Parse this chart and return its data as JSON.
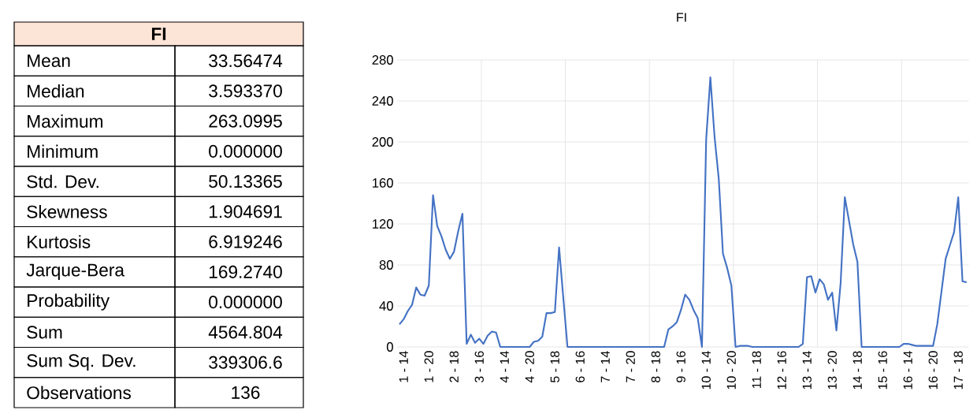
{
  "chart_data": [
    {
      "type": "other",
      "title": "FI",
      "categories": [
        "Mean",
        "Median",
        "Maximum",
        "Minimum",
        "Std. Dev.",
        "Skewness",
        "Kurtosis",
        "Jarque-Bera",
        "Probability",
        "Sum",
        "Sum Sq. Dev.",
        "Observations"
      ],
      "values": [
        33.56474,
        3.59337,
        263.0995,
        0,
        50.13365,
        1.904691,
        6.919246,
        169.274,
        0,
        4564.804,
        339306.6,
        136
      ],
      "value_labels": [
        "33.56474",
        "3.593370",
        "263.0995",
        "0.000000",
        "50.13365",
        "1.904691",
        "6.919246",
        "169.2740",
        "0.000000",
        "4564.804",
        "339306.6",
        "136"
      ]
    },
    {
      "type": "line",
      "title": "FI",
      "color": "#4472c4",
      "grid": true,
      "ylim": [
        0,
        280
      ],
      "yticks": [
        0,
        40,
        80,
        120,
        160,
        200,
        240,
        280
      ],
      "categories": [
        null,
        "1 - 14",
        null,
        null,
        null,
        null,
        null,
        "1 - 20",
        null,
        null,
        null,
        null,
        null,
        "2 - 18",
        null,
        null,
        null,
        null,
        null,
        "3 - 16",
        null,
        null,
        null,
        null,
        null,
        "4 - 14",
        null,
        null,
        null,
        null,
        null,
        "4 - 20",
        null,
        null,
        null,
        null,
        null,
        "5 - 18",
        null,
        null,
        null,
        null,
        null,
        "6 - 16",
        null,
        null,
        null,
        null,
        null,
        "7 - 14",
        null,
        null,
        null,
        null,
        null,
        "7 - 20",
        null,
        null,
        null,
        null,
        null,
        "8 - 18",
        null,
        null,
        null,
        null,
        null,
        "9 - 16",
        null,
        null,
        null,
        null,
        null,
        "10 - 14",
        null,
        null,
        null,
        null,
        null,
        "10 - 20",
        null,
        null,
        null,
        null,
        null,
        "11 - 18",
        null,
        null,
        null,
        null,
        null,
        "12 - 16",
        null,
        null,
        null,
        null,
        null,
        "13 - 14",
        null,
        null,
        null,
        null,
        null,
        "13 - 20",
        null,
        null,
        null,
        null,
        null,
        "14 - 18",
        null,
        null,
        null,
        null,
        null,
        "15 - 16",
        null,
        null,
        null,
        null,
        null,
        "16 - 14",
        null,
        null,
        null,
        null,
        null,
        "16 - 20",
        null,
        null,
        null,
        null,
        null,
        "17 - 18",
        null,
        null
      ],
      "values": [
        22,
        27,
        35,
        41,
        58,
        51,
        50,
        60,
        148,
        118,
        108,
        95,
        86,
        93,
        113,
        130,
        3,
        12,
        4,
        8,
        3,
        11,
        15,
        14,
        0,
        0,
        0,
        0,
        0,
        0,
        0,
        0,
        5,
        6,
        10,
        33,
        33,
        34,
        97,
        48,
        0,
        0,
        0,
        0,
        0,
        0,
        0,
        0,
        0,
        0,
        0,
        0,
        0,
        0,
        0,
        0,
        0,
        0,
        0,
        0,
        0,
        0,
        0,
        0,
        17,
        20,
        24,
        36,
        51,
        46,
        36,
        28,
        0,
        202,
        263,
        205,
        164,
        91,
        77,
        60,
        0,
        1,
        1,
        1,
        0,
        0,
        0,
        0,
        0,
        0,
        0,
        0,
        0,
        0,
        0,
        0,
        3,
        68,
        69,
        53,
        66,
        61,
        46,
        53,
        16,
        62,
        146,
        123,
        100,
        83,
        0,
        0,
        0,
        0,
        0,
        0,
        0,
        0,
        0,
        0,
        3,
        3,
        2,
        1,
        1,
        1,
        1,
        1,
        22,
        54,
        86,
        99,
        112,
        146,
        64,
        63
      ]
    }
  ]
}
